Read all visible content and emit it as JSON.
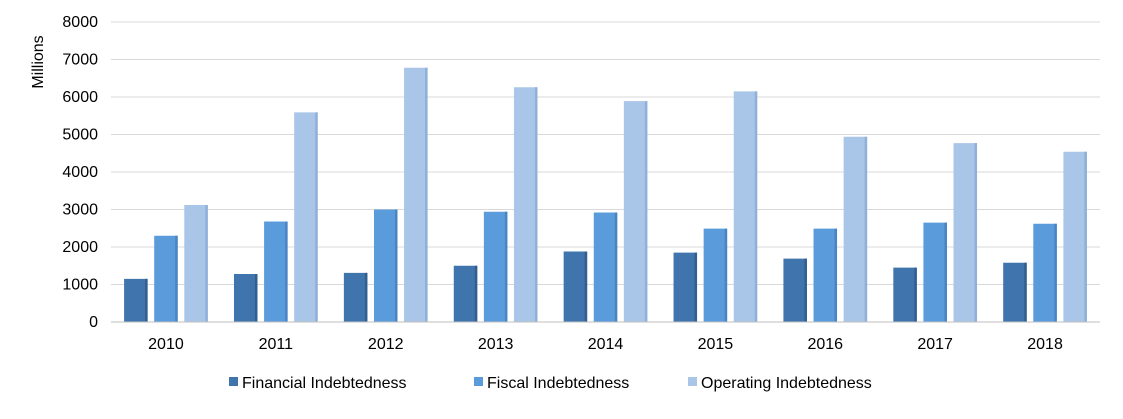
{
  "chart_data": {
    "type": "bar",
    "title": "",
    "xlabel": "",
    "ylabel": "Millions",
    "ylim": [
      0,
      8000
    ],
    "yticks": [
      0,
      1000,
      2000,
      3000,
      4000,
      5000,
      6000,
      7000,
      8000
    ],
    "grid": true,
    "legend_position": "bottom",
    "categories": [
      "2010",
      "2011",
      "2012",
      "2013",
      "2014",
      "2015",
      "2016",
      "2017",
      "2018"
    ],
    "series": [
      {
        "name": "Financial Indebtedness",
        "color": "#3f74ad",
        "values": [
          1150,
          1280,
          1310,
          1500,
          1880,
          1850,
          1690,
          1450,
          1580
        ]
      },
      {
        "name": "Fiscal Indebtedness",
        "color": "#5a9bdc",
        "values": [
          2300,
          2680,
          3000,
          2940,
          2920,
          2490,
          2490,
          2650,
          2620
        ]
      },
      {
        "name": "Operating Indebtedness",
        "color": "#a9c5e8",
        "values": [
          3120,
          5590,
          6780,
          6260,
          5890,
          6150,
          4940,
          4770,
          4540
        ]
      }
    ]
  }
}
